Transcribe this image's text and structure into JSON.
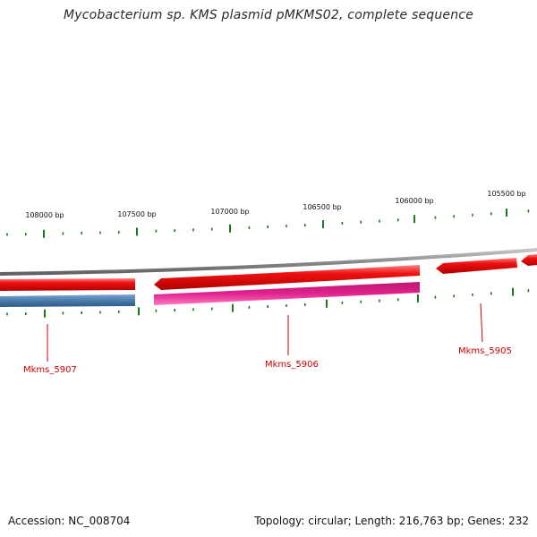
{
  "title": "Mycobacterium sp. KMS plasmid pMKMS02, complete sequence",
  "footer": {
    "accession": "Accession: NC_008704",
    "summary": "Topology: circular; Length: 216,763 bp; Genes: 232"
  },
  "ruler": {
    "ticks": [
      "108000 bp",
      "107500 bp",
      "107000 bp",
      "106500 bp",
      "106000 bp",
      "105500 bp"
    ]
  },
  "genes": [
    {
      "name": "Mkms_5907",
      "strand": "reverse",
      "color": "#4a7bab"
    },
    {
      "name": "Mkms_5906",
      "strand": "reverse",
      "color": "#e0228f"
    },
    {
      "name": "Mkms_5905",
      "strand": "forward",
      "color": "#e01010"
    }
  ],
  "colors": {
    "backbone": "#8c8c8c",
    "forward_track": "#ee1111",
    "tick": "#1a7a1a",
    "label": "#cc0000"
  }
}
